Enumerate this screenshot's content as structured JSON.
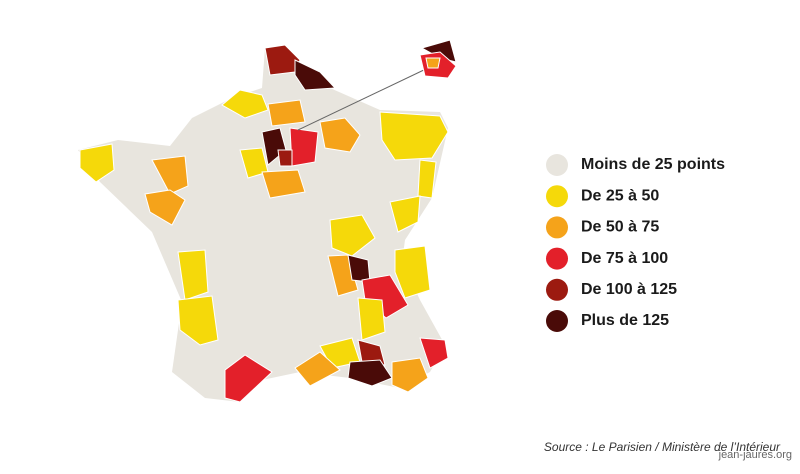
{
  "legend": {
    "items": [
      {
        "label": "Moins de 25 points",
        "color": "#e8e5de"
      },
      {
        "label": "De 25 à 50",
        "color": "#f5d90a"
      },
      {
        "label": "De 50 à 75",
        "color": "#f5a31a"
      },
      {
        "label": "De 75 à 100",
        "color": "#e3202a"
      },
      {
        "label": "De 100 à 125",
        "color": "#9c1a10"
      },
      {
        "label": "Plus de 125",
        "color": "#4a0b08"
      }
    ]
  },
  "source": "Source : Le Parisien / Ministère de l’Intérieur",
  "watermark": "jean-jaures.org"
}
